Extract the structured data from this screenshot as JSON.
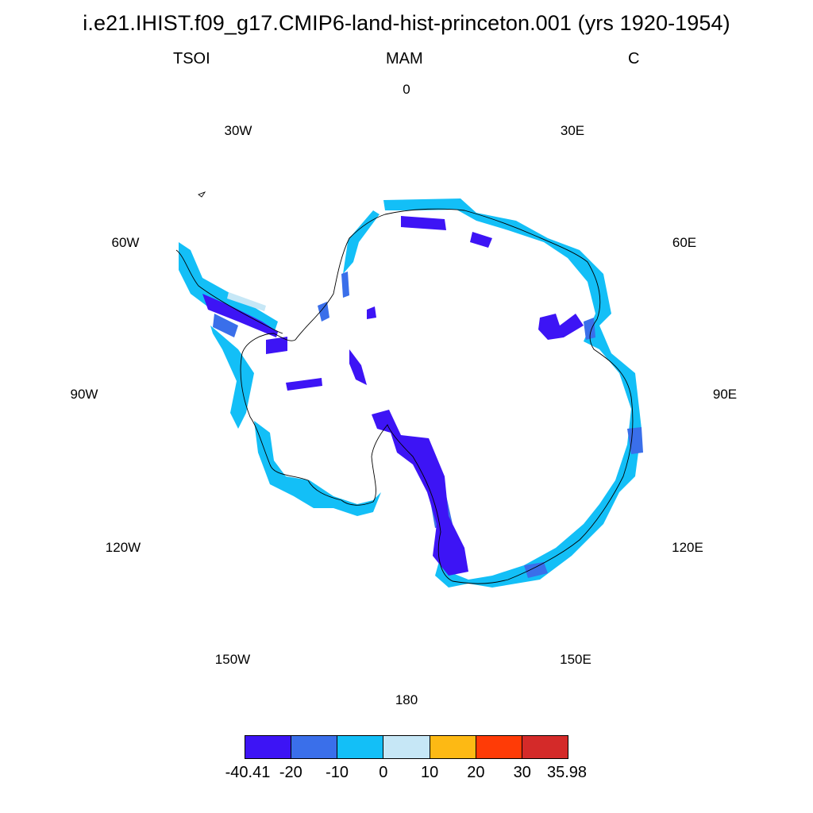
{
  "title": "i.e21.IHIST.f09_g17.CMIP6-land-hist-princeton.001 (yrs 1920-1954)",
  "subtitle": {
    "left": "TSOI",
    "center": "MAM",
    "right": "C"
  },
  "longitude_labels": [
    "0",
    "30E",
    "60E",
    "90E",
    "120E",
    "150E",
    "180",
    "150W",
    "120W",
    "90W",
    "60W",
    "30W"
  ],
  "colorbar": {
    "labels": [
      "-40.41",
      "-20",
      "-10",
      "0",
      "10",
      "20",
      "30",
      "35.98"
    ],
    "colors": [
      "#3d14f5",
      "#3a6fea",
      "#13bff7",
      "#c6e7f6",
      "#fdb914",
      "#ff3b06",
      "#d42a29"
    ]
  },
  "colors": {
    "coastline": "#000000",
    "background": "#ffffff"
  }
}
